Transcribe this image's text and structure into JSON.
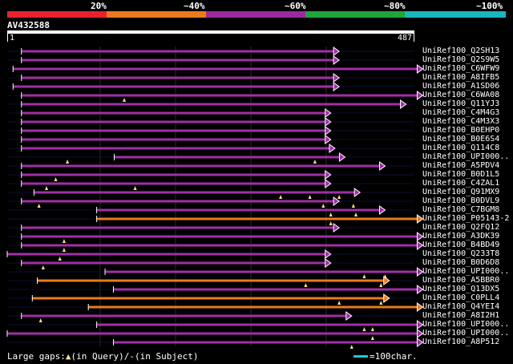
{
  "colors": {
    "background": "#000000",
    "scale_red": "#e8212d",
    "scale_orange": "#ea7a1e",
    "scale_purple": "#9c2a9e",
    "scale_green": "#1ea63a",
    "scale_cyan": "#1ab6c0",
    "hit_purple": "#a02fa6",
    "hit_orange": "#ea7a1e",
    "gap_marker": "#ffe08a",
    "scale_line": "#1ec8d8"
  },
  "identity_scale": {
    "labels": [
      "20%",
      "~40%",
      "~60%",
      "~80%",
      "~100%"
    ]
  },
  "query": {
    "name": "AV432588",
    "start": "1",
    "end": "487",
    "length": 487
  },
  "hits": [
    {
      "name": "UniRef100_Q2SH13",
      "start": 17,
      "end": 397,
      "color": "purple",
      "gaps": []
    },
    {
      "name": "UniRef100_Q2S9W5",
      "start": 17,
      "end": 397,
      "color": "purple",
      "gaps": []
    },
    {
      "name": "UniRef100_C6WFW9",
      "start": 7,
      "end": 497,
      "color": "purple",
      "gaps": []
    },
    {
      "name": "UniRef100_A8IFB5",
      "start": 17,
      "end": 397,
      "color": "purple",
      "gaps": []
    },
    {
      "name": "UniRef100_A1SD06",
      "start": 7,
      "end": 397,
      "color": "purple",
      "gaps": []
    },
    {
      "name": "UniRef100_C6WA08",
      "start": 17,
      "end": 497,
      "color": "purple",
      "gaps": [
        140
      ]
    },
    {
      "name": "UniRef100_Q11YJ3",
      "start": 17,
      "end": 477,
      "color": "purple",
      "gaps": []
    },
    {
      "name": "UniRef100_C4M4G3",
      "start": 17,
      "end": 387,
      "color": "purple",
      "gaps": []
    },
    {
      "name": "UniRef100_C4M3X3",
      "start": 17,
      "end": 387,
      "color": "purple",
      "gaps": []
    },
    {
      "name": "UniRef100_B0EHP0",
      "start": 17,
      "end": 387,
      "color": "purple",
      "gaps": []
    },
    {
      "name": "UniRef100_B0E6S4",
      "start": 17,
      "end": 387,
      "color": "purple",
      "gaps": []
    },
    {
      "name": "UniRef100_Q114C8",
      "start": 17,
      "end": 392,
      "color": "purple",
      "gaps": []
    },
    {
      "name": "UniRef100_UPI000..",
      "start": 128,
      "end": 404,
      "color": "purple",
      "gaps": [
        72,
        368
      ]
    },
    {
      "name": "UniRef100_A5PDV4",
      "start": 17,
      "end": 452,
      "color": "purple",
      "gaps": []
    },
    {
      "name": "UniRef100_B0D1L5",
      "start": 17,
      "end": 387,
      "color": "purple",
      "gaps": [
        58
      ]
    },
    {
      "name": "UniRef100_C4ZAL1",
      "start": 17,
      "end": 387,
      "color": "purple",
      "gaps": [
        47,
        153
      ]
    },
    {
      "name": "UniRef100_Q91MX9",
      "start": 32,
      "end": 422,
      "color": "purple",
      "gaps": [
        327,
        362,
        397
      ]
    },
    {
      "name": "UniRef100_B0DVL9",
      "start": 17,
      "end": 397,
      "color": "purple",
      "gaps": [
        38,
        378,
        414
      ]
    },
    {
      "name": "UniRef100_C7BGM8",
      "start": 107,
      "end": 452,
      "color": "purple",
      "gaps": [
        387,
        417
      ]
    },
    {
      "name": "UniRef100_P05143-2",
      "start": 107,
      "end": 497,
      "color": "orange",
      "gaps": [
        387
      ]
    },
    {
      "name": "UniRef100_Q2FQ12",
      "start": 17,
      "end": 397,
      "color": "purple",
      "gaps": []
    },
    {
      "name": "UniRef100_A3DK39",
      "start": 17,
      "end": 497,
      "color": "purple",
      "gaps": [
        68
      ]
    },
    {
      "name": "UniRef100_B4BD49",
      "start": 17,
      "end": 497,
      "color": "purple",
      "gaps": [
        68
      ]
    },
    {
      "name": "UniRef100_Q233T8",
      "start": 0,
      "end": 387,
      "color": "purple",
      "gaps": [
        63
      ]
    },
    {
      "name": "UniRef100_B0D6D8",
      "start": 17,
      "end": 387,
      "color": "purple",
      "gaps": [
        43
      ]
    },
    {
      "name": "UniRef100_UPI000..",
      "start": 117,
      "end": 497,
      "color": "purple",
      "gaps": [
        427,
        452
      ]
    },
    {
      "name": "UniRef100_A5BBR0",
      "start": 36,
      "end": 457,
      "color": "orange",
      "gaps": [
        357,
        447
      ]
    },
    {
      "name": "UniRef100_Q13DX5",
      "start": 127,
      "end": 497,
      "color": "purple",
      "gaps": []
    },
    {
      "name": "UniRef100_C0PLL4",
      "start": 30,
      "end": 457,
      "color": "orange",
      "gaps": [
        397,
        447
      ]
    },
    {
      "name": "UniRef100_Q4YEI4",
      "start": 97,
      "end": 497,
      "color": "orange",
      "gaps": []
    },
    {
      "name": "UniRef100_A8I2H1",
      "start": 17,
      "end": 412,
      "color": "purple",
      "gaps": [
        40
      ]
    },
    {
      "name": "UniRef100_UPI000..",
      "start": 107,
      "end": 497,
      "color": "purple",
      "gaps": [
        427,
        437
      ]
    },
    {
      "name": "UniRef100_UPI000..",
      "start": 0,
      "end": 497,
      "color": "purple",
      "gaps": [
        437
      ]
    },
    {
      "name": "UniRef100_A8P512",
      "start": 127,
      "end": 497,
      "color": "purple",
      "gaps": [
        412
      ]
    }
  ],
  "footer": {
    "prefix": "Large gaps:",
    "marker": "▲",
    "query_text": "(in Query)/",
    "dash": "-",
    "subject_text": "(in Subject)"
  },
  "scale_legend": {
    "text": "=100char."
  }
}
